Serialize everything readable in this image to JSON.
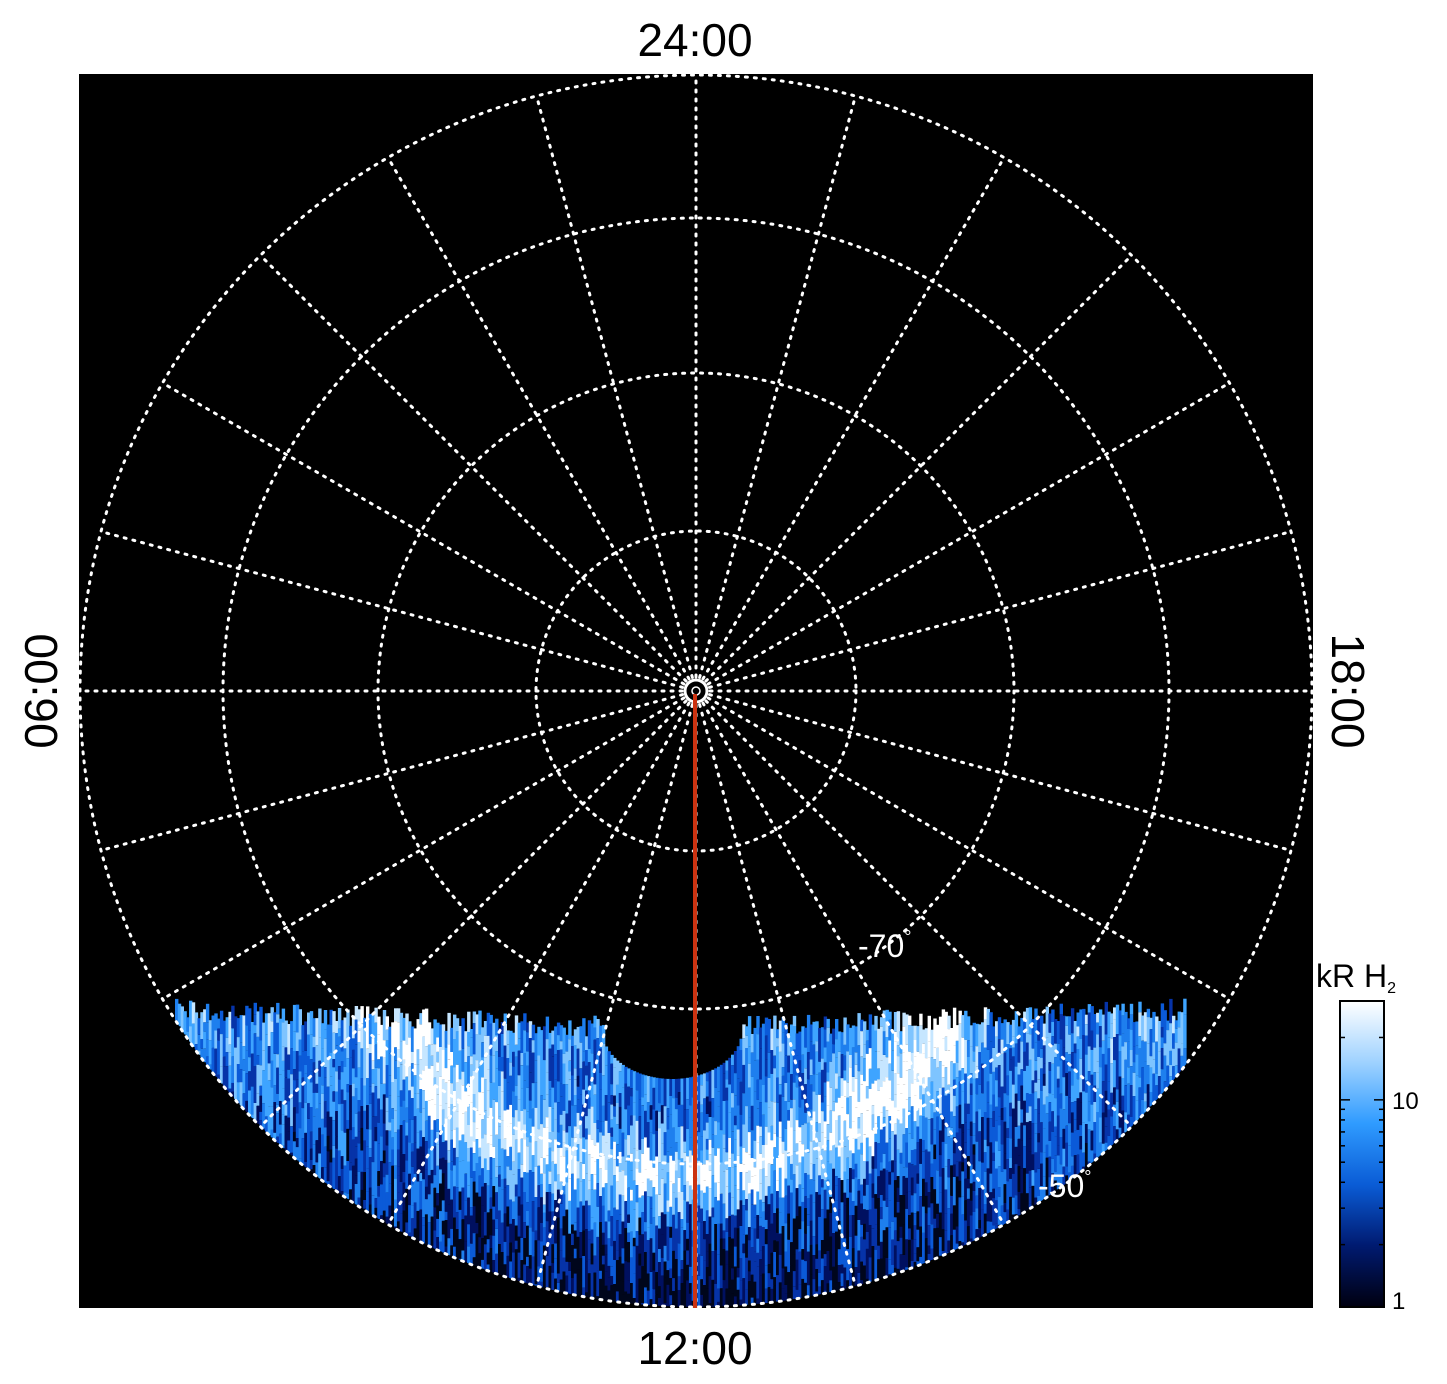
{
  "labels": {
    "top": "24:00",
    "bottom": "12:00",
    "left": "06:00",
    "right": "18:00"
  },
  "grid_labels": {
    "lat_70": "-70",
    "lat_50": "-50",
    "degree_symbol": "°"
  },
  "colorbar": {
    "label_main": "kR H",
    "label_sub": "2",
    "ticks": [
      {
        "value": 1,
        "label": "1"
      },
      {
        "value": 10,
        "label": "10"
      }
    ],
    "range": [
      1,
      30
    ],
    "scale": "log",
    "colors": [
      "#000010",
      "#001a70",
      "#0a5cd6",
      "#2f9bff",
      "#9fd2ff",
      "#ffffff"
    ]
  },
  "colors": {
    "background": "#000000",
    "grid": "#ffffff",
    "meridian": "#cc3311"
  }
}
